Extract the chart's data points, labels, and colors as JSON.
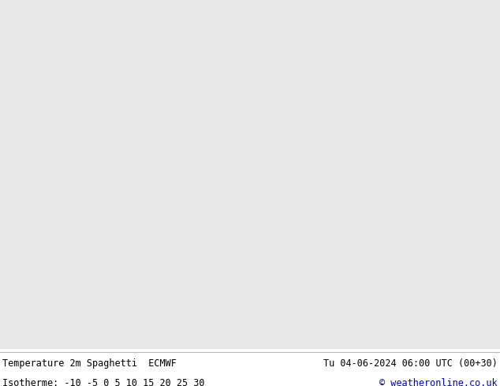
{
  "title_left": "Temperature 2m Spaghetti  ECMWF",
  "title_right": "Tu 04-06-2024 06:00 UTC (00+30)",
  "isotherme_label": "Isotherme: -10 -5 0 5 10 15 20 25 30",
  "copyright": "© weatheronline.co.uk",
  "sea_color": "#e8e8e8",
  "land_color": "#c8f0b8",
  "coast_color": "#999999",
  "bottom_text_color": "#000000",
  "bottom_bg_color": "#ffffff",
  "font_size_bottom": 8.5,
  "fig_width": 6.34,
  "fig_height": 4.9,
  "dpi": 100,
  "lon_min": -16.0,
  "lon_max": 13.0,
  "lat_min": 47.5,
  "lat_max": 62.5,
  "ensemble_colors": [
    "#888888",
    "#888888",
    "#888888",
    "#888888",
    "#888888",
    "#888888",
    "#888888",
    "#888888",
    "#888888",
    "#888888",
    "#888888",
    "#888888",
    "#888888",
    "#888888",
    "#888888",
    "#888888",
    "#888888",
    "#888888",
    "#888888",
    "#888888",
    "#00cccc",
    "#00cccc",
    "#00cccc",
    "#00cccc",
    "#00aa00",
    "#00aa00",
    "#00aa00",
    "#00aa00",
    "#ffcc00",
    "#ffcc00",
    "#ffcc00",
    "#ffcc00",
    "#ff6600",
    "#ff6600",
    "#ff6600",
    "#ff6600",
    "#cc00cc",
    "#cc00cc",
    "#cc00cc",
    "#cc00cc",
    "#ff00ff",
    "#ff00ff",
    "#ff00ff",
    "#ff0000",
    "#ff0000",
    "#ff0000",
    "#0000ff",
    "#0000ff",
    "#00ffff",
    "#00ffff"
  ],
  "label_color_gray": "#888888",
  "label_color_blue": "#0000ff",
  "label_color_cyan": "#00cccc",
  "label_color_orange": "#ff6600",
  "label_color_green": "#00aa00",
  "label_color_magenta": "#cc00cc",
  "label_color_yellow": "#ccaa00",
  "label_color_red": "#ff0000"
}
